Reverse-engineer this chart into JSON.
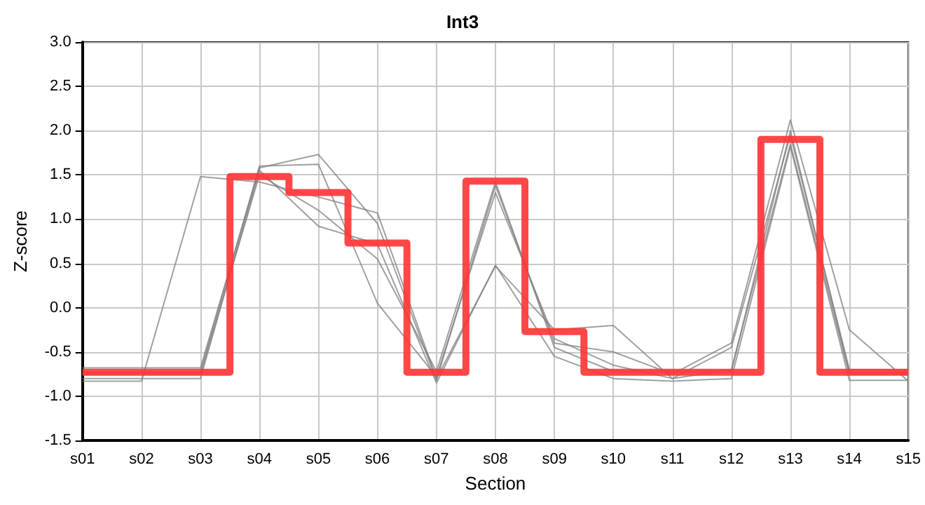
{
  "chart_data": {
    "type": "line",
    "title": "Int3",
    "xlabel": "Section",
    "ylabel": "Z-score",
    "categories": [
      "s01",
      "s02",
      "s03",
      "s04",
      "s05",
      "s06",
      "s07",
      "s08",
      "s09",
      "s10",
      "s11",
      "s12",
      "s13",
      "s14",
      "s15"
    ],
    "ylim": [
      -1.5,
      3.0
    ],
    "yticks": [
      {
        "value": -1.5,
        "label": "-1.5"
      },
      {
        "value": -1,
        "label": "-1.0"
      },
      {
        "value": -0.5,
        "label": "-0.5"
      },
      {
        "value": 0,
        "label": "0.0"
      },
      {
        "value": 0.5,
        "label": "0.5"
      },
      {
        "value": 1,
        "label": "1.0"
      },
      {
        "value": 1.5,
        "label": "1.5"
      },
      {
        "value": 2,
        "label": "2.0"
      },
      {
        "value": 2.5,
        "label": "2.5"
      },
      {
        "value": 3,
        "label": "3.0"
      }
    ],
    "grid": true,
    "marker": "none",
    "line_style": "solid",
    "series": [
      {
        "color": "#808080",
        "values": [
          -0.83,
          -0.83,
          1.48,
          1.42,
          1.25,
          1.07,
          -0.8,
          0.47,
          -0.25,
          -0.2,
          -0.8,
          -0.7,
          1.85,
          -0.75,
          -0.75
        ]
      },
      {
        "color": "#808080",
        "values": [
          -0.68,
          -0.68,
          -0.68,
          1.58,
          1.73,
          0.95,
          -0.82,
          1.38,
          -0.4,
          -0.5,
          -0.75,
          -0.4,
          2.12,
          -0.25,
          -0.83
        ]
      },
      {
        "color": "#808080",
        "values": [
          -0.73,
          -0.73,
          -0.73,
          1.6,
          1.62,
          0.05,
          -0.78,
          1.3,
          -0.35,
          -0.65,
          -0.8,
          -0.45,
          1.95,
          -0.7,
          -0.7
        ]
      },
      {
        "color": "#808080",
        "values": [
          -0.8,
          -0.8,
          -0.8,
          1.55,
          0.92,
          0.72,
          -0.85,
          0.48,
          -0.55,
          -0.8,
          -0.83,
          -0.8,
          1.82,
          -0.82,
          -0.82
        ]
      },
      {
        "color": "#808080",
        "values": [
          -0.75,
          -0.75,
          -0.75,
          1.5,
          1.1,
          0.55,
          -0.72,
          1.42,
          -0.45,
          -0.72,
          -0.72,
          -0.72,
          2.0,
          -0.73,
          -0.73
        ]
      },
      {
        "type": "step",
        "color": "#ff3333",
        "values": [
          -0.73,
          -0.73,
          -0.73,
          1.48,
          1.3,
          0.73,
          -0.73,
          1.43,
          -0.27,
          -0.73,
          -0.73,
          -0.73,
          1.9,
          -0.73,
          -0.73
        ]
      }
    ]
  }
}
